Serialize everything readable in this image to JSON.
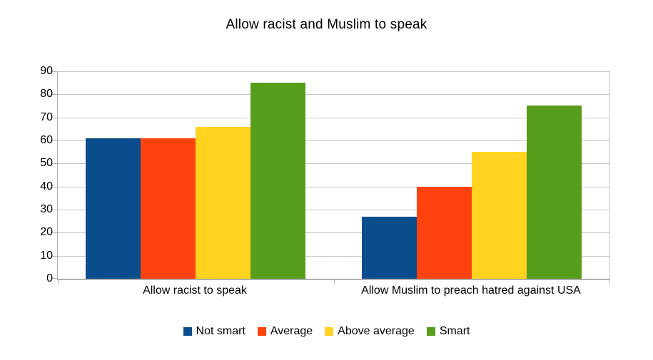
{
  "chart_data": {
    "type": "bar",
    "title": "Allow racist and Muslim to speak",
    "categories": [
      "Allow racist to speak",
      "Allow Muslim to preach hatred against USA"
    ],
    "series": [
      {
        "name": "Not smart",
        "color": "#0a4d8c",
        "values": [
          61,
          27
        ]
      },
      {
        "name": "Average",
        "color": "#ff420e",
        "values": [
          61,
          40
        ]
      },
      {
        "name": "Above average",
        "color": "#ffd320",
        "values": [
          66,
          55
        ]
      },
      {
        "name": "Smart",
        "color": "#579d1c",
        "values": [
          85,
          75
        ]
      }
    ],
    "ylim": [
      0,
      90
    ],
    "yticks": [
      0,
      10,
      20,
      30,
      40,
      50,
      60,
      70,
      80,
      90
    ],
    "xlabel": "",
    "ylabel": "",
    "grid": true,
    "legend_position": "bottom"
  }
}
